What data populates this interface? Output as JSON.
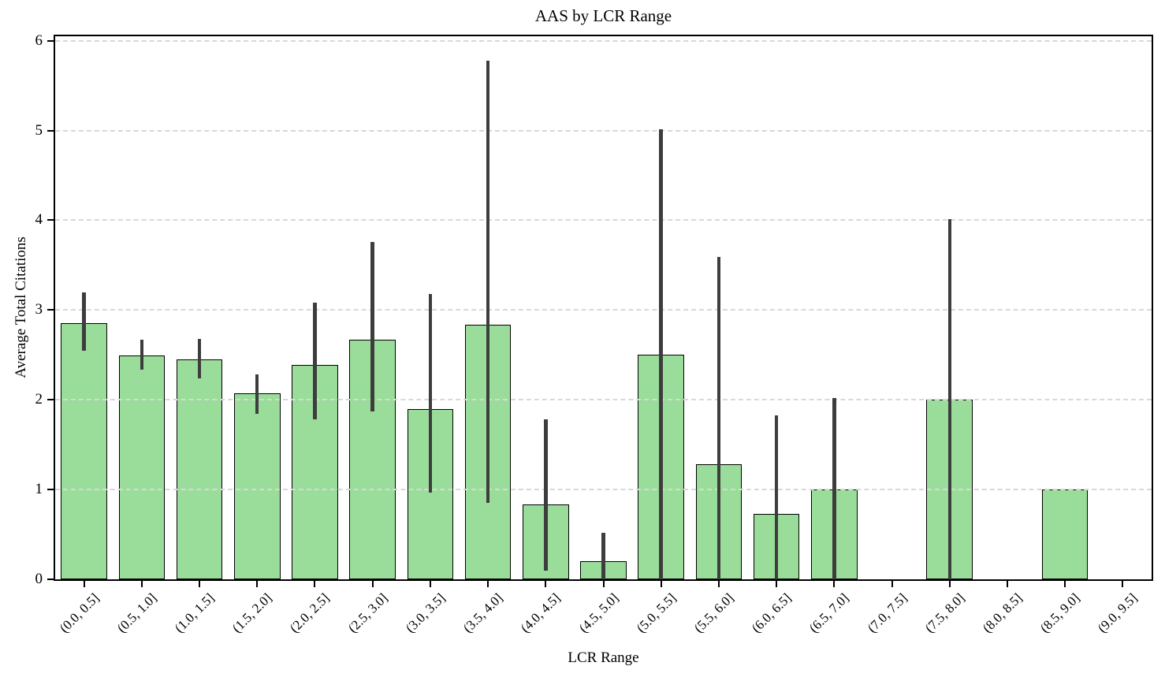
{
  "chart_data": {
    "type": "bar",
    "title": "AAS by LCR Range",
    "xlabel": "LCR Range",
    "ylabel": "Average Total Citations",
    "categories": [
      "(0.0, 0.5]",
      "(0.5, 1.0]",
      "(1.0, 1.5]",
      "(1.5, 2.0]",
      "(2.0, 2.5]",
      "(2.5, 3.0]",
      "(3.0, 3.5]",
      "(3.5, 4.0]",
      "(4.0, 4.5]",
      "(4.5, 5.0]",
      "(5.0, 5.5]",
      "(5.5, 6.0]",
      "(6.0, 6.5]",
      "(6.5, 7.0]",
      "(7.0, 7.5]",
      "(7.5, 8.0]",
      "(8.0, 8.5]",
      "(8.5, 9.0]",
      "(9.0, 9.5]"
    ],
    "values": [
      2.85,
      2.49,
      2.45,
      2.07,
      2.39,
      2.67,
      1.9,
      2.84,
      0.83,
      0.2,
      2.5,
      1.28,
      0.73,
      1.0,
      null,
      2.0,
      null,
      1.0,
      null
    ],
    "error_low": [
      2.55,
      2.34,
      2.24,
      1.84,
      1.78,
      1.87,
      0.97,
      0.85,
      0.1,
      0.0,
      0.0,
      0.0,
      0.0,
      0.0,
      null,
      0.0,
      null,
      null,
      null
    ],
    "error_high": [
      3.2,
      2.67,
      2.68,
      2.28,
      3.08,
      3.76,
      3.18,
      5.78,
      1.78,
      0.52,
      5.01,
      3.59,
      1.83,
      2.02,
      null,
      4.01,
      null,
      null,
      null
    ],
    "y_ticks": [
      "0",
      "1",
      "2",
      "3",
      "4",
      "5",
      "6"
    ],
    "ylim": [
      0,
      6.05
    ],
    "grid": "horizontal-dashed",
    "legend": "none",
    "bar_width_fraction": 0.8,
    "colors": {
      "bar_fill": "#9ADD9A",
      "bar_edge": "#000000",
      "error_bar": "#3D3D3D",
      "gridline": "#d8d8d8",
      "spine": "#000000",
      "background": "#ffffff"
    }
  }
}
